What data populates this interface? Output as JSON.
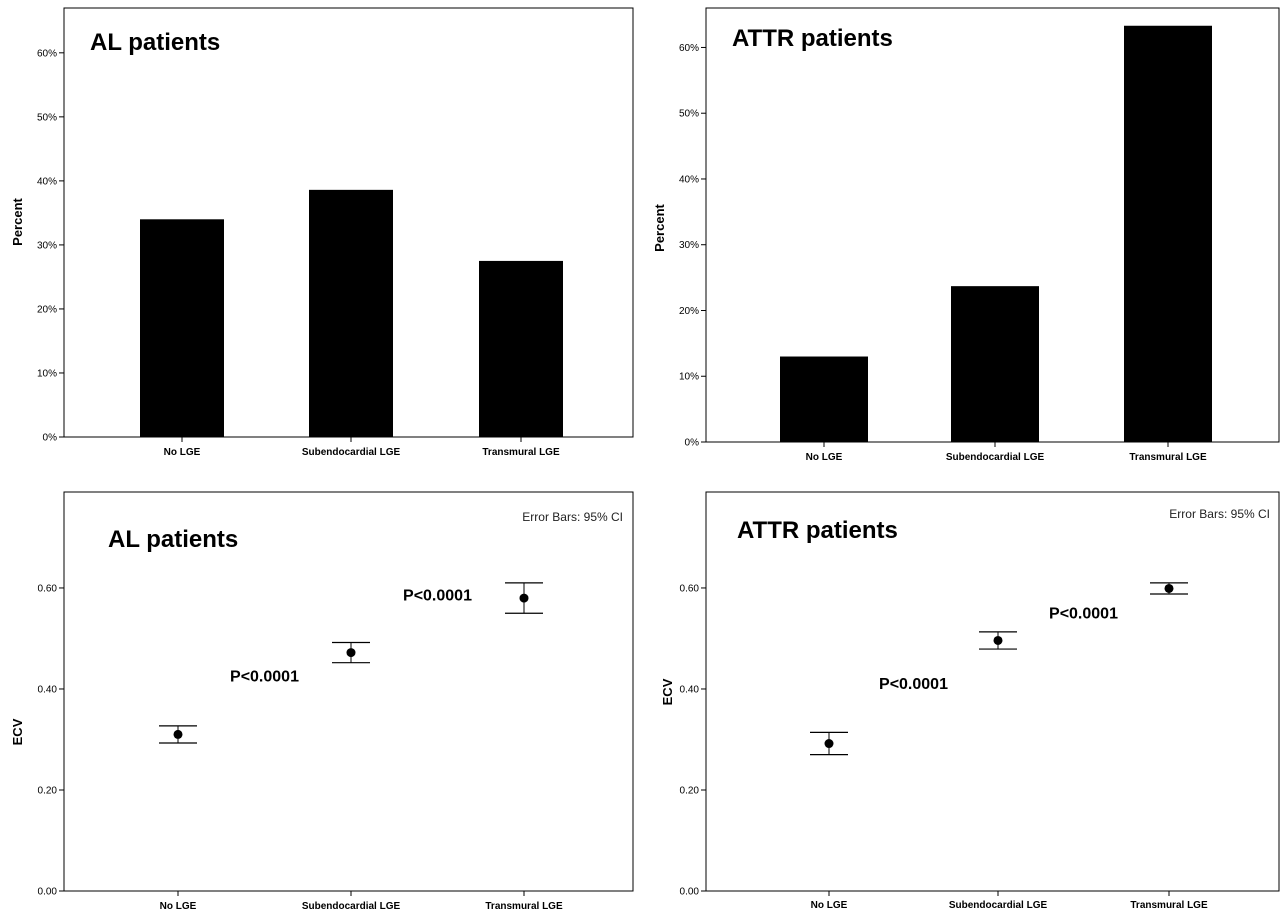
{
  "chart_data": [
    {
      "type": "bar",
      "title": "AL patients",
      "ylabel": "Percent",
      "xlabel": "",
      "categories": [
        "No LGE",
        "Subendocardial LGE",
        "Transmural LGE"
      ],
      "values": [
        34,
        38.6,
        27.5
      ],
      "ylim": [
        0,
        67
      ],
      "yticks": [
        "0%",
        "10%",
        "20%",
        "30%",
        "40%",
        "50%",
        "60%"
      ],
      "ytick_values": [
        0,
        10,
        20,
        30,
        40,
        50,
        60
      ],
      "bar_color": "#000000",
      "grid": false
    },
    {
      "type": "bar",
      "title": "ATTR patients",
      "ylabel": "Percent",
      "xlabel": "",
      "categories": [
        "No LGE",
        "Subendocardial LGE",
        "Transmural LGE"
      ],
      "values": [
        13,
        23.7,
        63.3
      ],
      "ylim": [
        0,
        66
      ],
      "yticks": [
        "0%",
        "10%",
        "20%",
        "30%",
        "40%",
        "50%",
        "60%"
      ],
      "ytick_values": [
        0,
        10,
        20,
        30,
        40,
        50,
        60
      ],
      "bar_color": "#000000",
      "grid": false
    },
    {
      "type": "scatter",
      "title": "AL patients",
      "ylabel": "ECV",
      "xlabel": "",
      "note": "Error Bars: 95% CI",
      "categories": [
        "No LGE",
        "Subendocardial LGE",
        "Transmural LGE"
      ],
      "values": [
        0.31,
        0.472,
        0.58
      ],
      "ci_low": [
        0.293,
        0.452,
        0.55
      ],
      "ci_high": [
        0.327,
        0.492,
        0.61
      ],
      "ylim": [
        0,
        0.79
      ],
      "yticks": [
        "0.00",
        "0.20",
        "0.40",
        "0.60"
      ],
      "ytick_values": [
        0,
        0.2,
        0.4,
        0.6
      ],
      "annotations": [
        {
          "text": "P<0.0001",
          "between": [
            0,
            1
          ],
          "y": 0.415
        },
        {
          "text": "P<0.0001",
          "between": [
            1,
            2
          ],
          "y": 0.575
        }
      ],
      "grid": false
    },
    {
      "type": "scatter",
      "title": "ATTR patients",
      "ylabel": "ECV",
      "xlabel": "",
      "note": "Error Bars: 95% CI",
      "categories": [
        "No LGE",
        "Subendocardial LGE",
        "Transmural LGE"
      ],
      "values": [
        0.292,
        0.496,
        0.599
      ],
      "ci_low": [
        0.27,
        0.479,
        0.588
      ],
      "ci_high": [
        0.314,
        0.513,
        0.61
      ],
      "ylim": [
        0,
        0.79
      ],
      "yticks": [
        "0.00",
        "0.20",
        "0.40",
        "0.60"
      ],
      "ytick_values": [
        0,
        0.2,
        0.4,
        0.6
      ],
      "annotations": [
        {
          "text": "P<0.0001",
          "between": [
            0,
            1
          ],
          "y": 0.4
        },
        {
          "text": "P<0.0001",
          "between": [
            1,
            2
          ],
          "y": 0.54
        }
      ],
      "grid": false
    }
  ]
}
